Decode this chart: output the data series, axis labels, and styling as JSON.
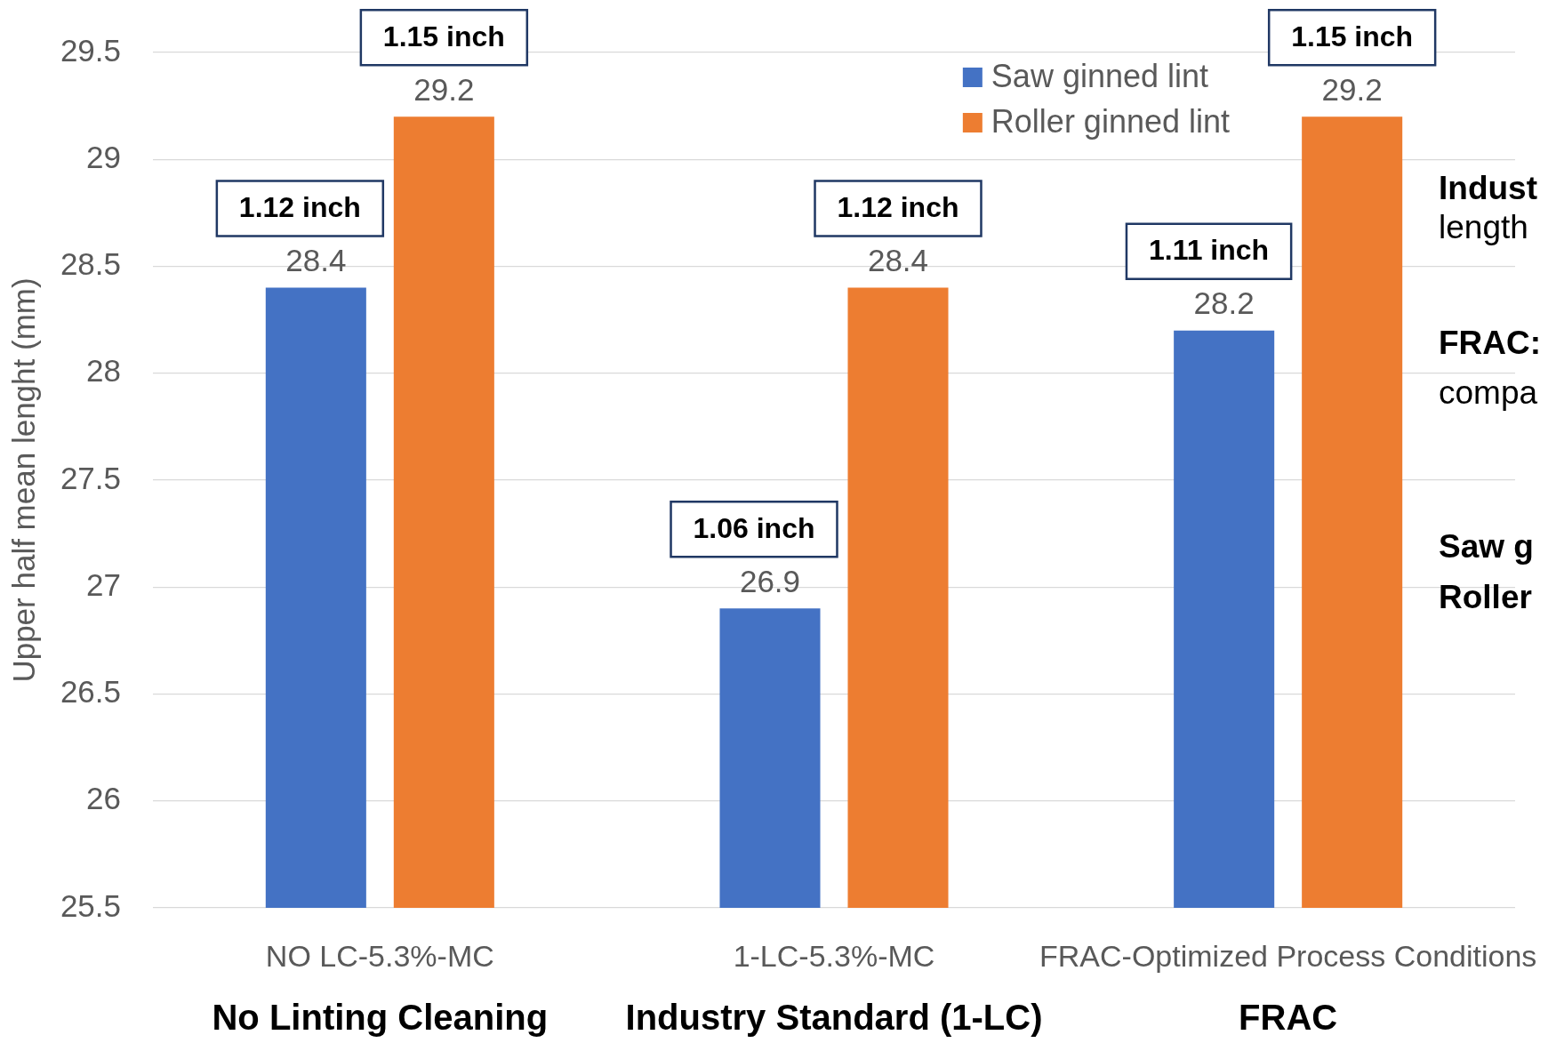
{
  "chart_data": {
    "type": "bar",
    "ylabel": "Upper half mean lenght (mm)",
    "categories": [
      "NO LC-5.3%-MC",
      "1-LC-5.3%-MC",
      "FRAC-Optimized Process Conditions"
    ],
    "series": [
      {
        "name": "Saw ginned lint",
        "color": "#4472c4",
        "values": [
          28.4,
          26.9,
          28.2
        ]
      },
      {
        "name": "Roller ginned lint",
        "color": "#ed7d31",
        "values": [
          29.2,
          28.4,
          29.2
        ]
      }
    ],
    "ylim": [
      25.5,
      29.5
    ],
    "yticks": [
      25.5,
      26,
      26.5,
      27,
      27.5,
      28,
      28.5,
      29,
      29.5
    ],
    "grid": "y",
    "legend": "top right",
    "data_labels": true,
    "annotations": [
      "1.12 inch",
      "1.15 inch",
      "1.06 inch",
      "1.12 inch",
      "1.11 inch",
      "1.15 inch",
      "No Linting Cleaning",
      "Industry Standard (1-LC)",
      "FRAC",
      "Indust\nlength",
      "FRAC:\ncompa",
      "Saw g",
      "Roller"
    ]
  }
}
